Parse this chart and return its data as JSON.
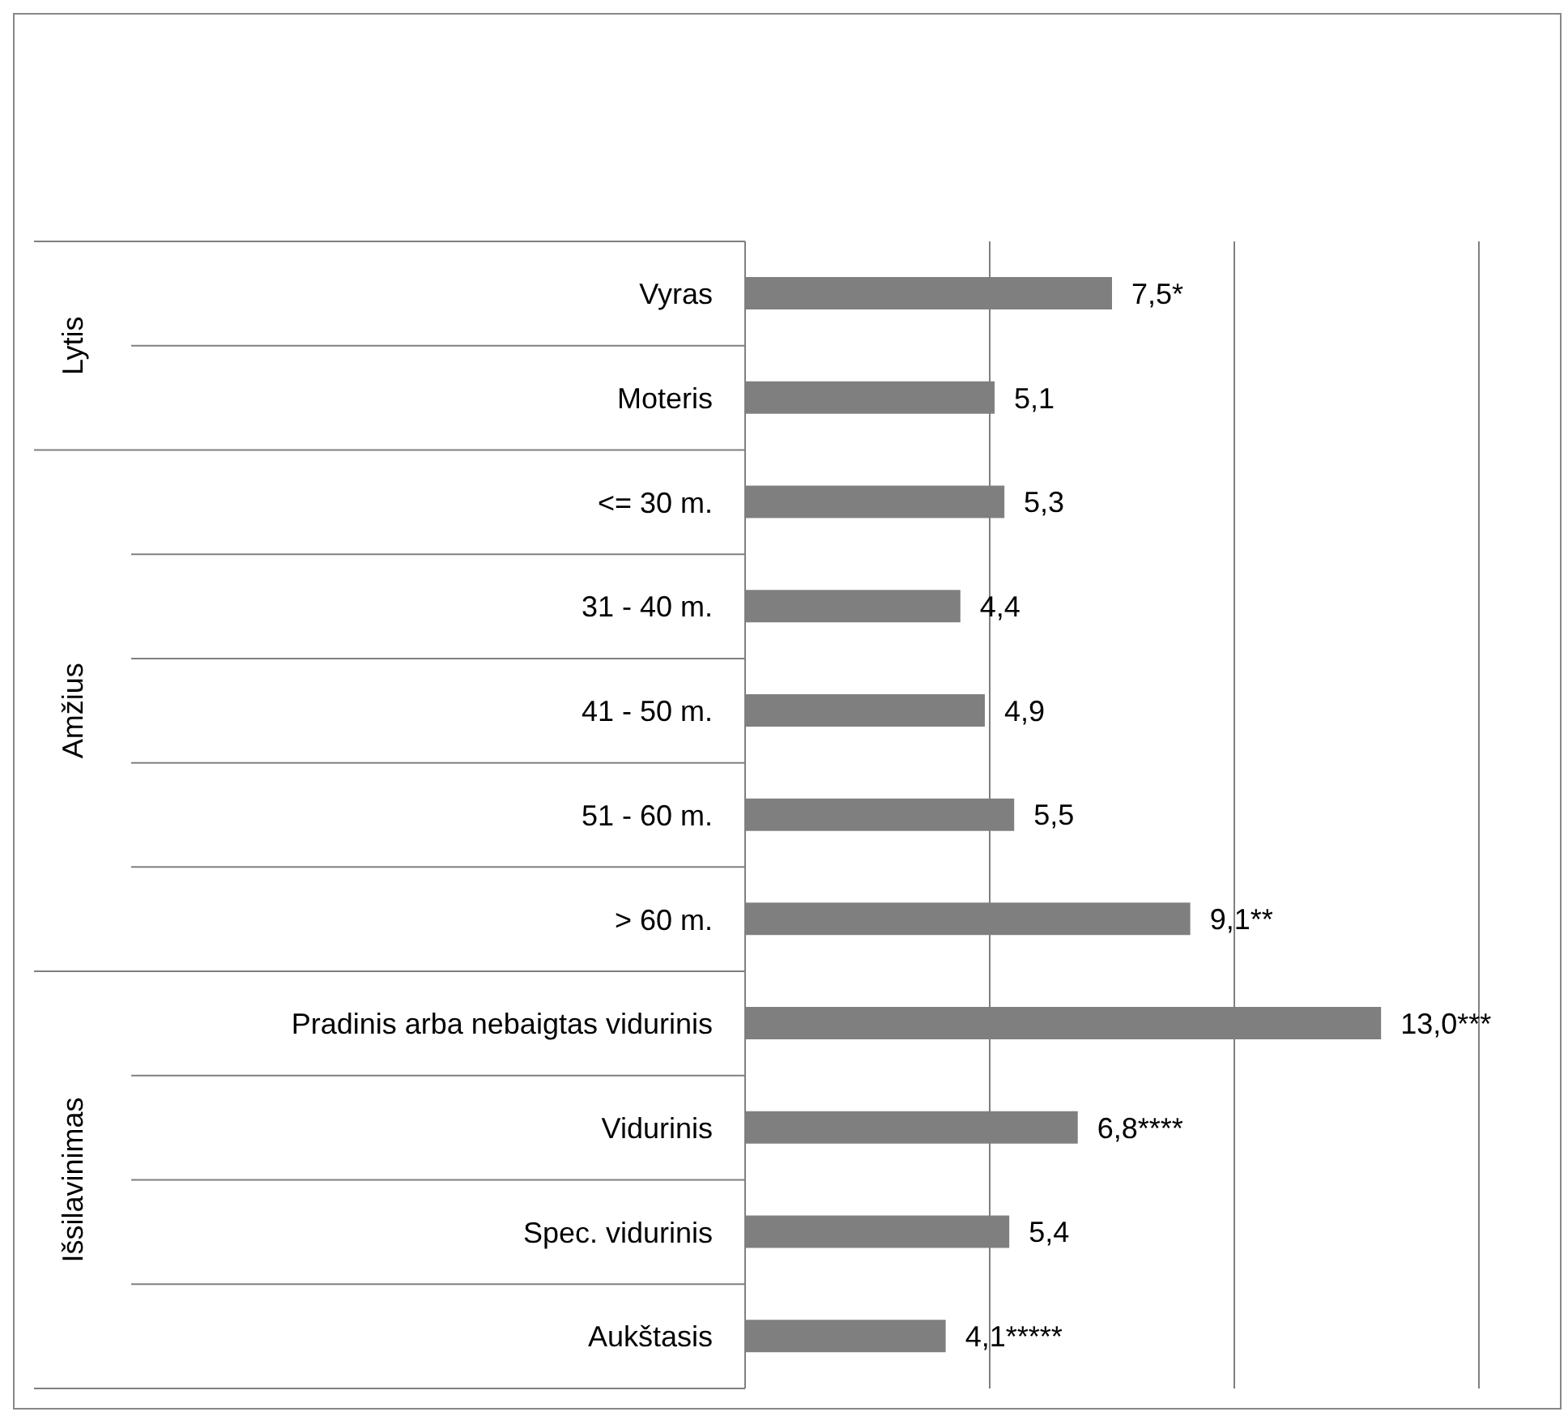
{
  "chart_data": {
    "type": "bar",
    "orientation": "horizontal",
    "categories": [
      "Vyras",
      "Moteris",
      "<= 30 m.",
      "31 - 40 m.",
      "41 - 50 m.",
      "51 - 60 m.",
      "> 60 m.",
      "Pradinis arba nebaigtas vidurinis",
      "Vidurinis",
      "Spec. vidurinis",
      "Aukštasis"
    ],
    "values": [
      7.5,
      5.1,
      5.3,
      4.4,
      4.9,
      5.5,
      9.1,
      13.0,
      6.8,
      5.4,
      4.1
    ],
    "value_labels": [
      "7,5*",
      "5,1",
      "5,3",
      "4,4",
      "4,9",
      "5,5",
      "9,1**",
      "13,0***",
      "6,8****",
      "5,4",
      "4,1*****"
    ],
    "color": "#7f7f7f",
    "xlim": [
      0,
      15
    ],
    "xticks": [
      {
        "value": 0,
        "label": null
      },
      {
        "value": 5,
        "label": null
      },
      {
        "value": 10,
        "label": null
      },
      {
        "value": 15,
        "label": null
      }
    ],
    "tick_labels": "y",
    "grid": "x",
    "legend": false,
    "annotations": [
      "Lytis",
      "Amžius",
      "Išsilavinimas"
    ]
  }
}
